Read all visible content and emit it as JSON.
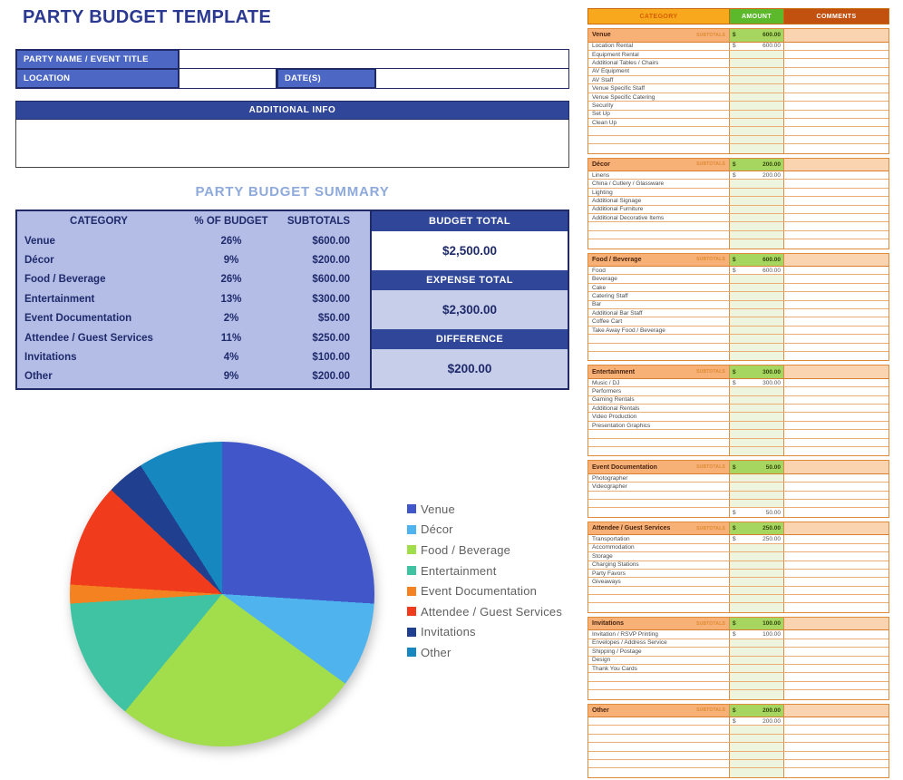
{
  "title": "PARTY BUDGET TEMPLATE",
  "form": {
    "party_name_label": "PARTY NAME / EVENT TITLE",
    "party_name_value": "",
    "location_label": "LOCATION",
    "location_value": "",
    "dates_label": "DATE(S)",
    "dates_value": "",
    "additional_info_label": "ADDITIONAL INFO",
    "additional_info_value": ""
  },
  "summary": {
    "title": "PARTY BUDGET SUMMARY",
    "columns": [
      "CATEGORY",
      "% OF BUDGET",
      "SUBTOTALS"
    ],
    "rows": [
      {
        "category": "Venue",
        "percent": "26%",
        "subtotal": "$600.00"
      },
      {
        "category": "Décor",
        "percent": "9%",
        "subtotal": "$200.00"
      },
      {
        "category": "Food / Beverage",
        "percent": "26%",
        "subtotal": "$600.00"
      },
      {
        "category": "Entertainment",
        "percent": "13%",
        "subtotal": "$300.00"
      },
      {
        "category": "Event Documentation",
        "percent": "2%",
        "subtotal": "$50.00"
      },
      {
        "category": "Attendee / Guest Services",
        "percent": "11%",
        "subtotal": "$250.00"
      },
      {
        "category": "Invitations",
        "percent": "4%",
        "subtotal": "$100.00"
      },
      {
        "category": "Other",
        "percent": "9%",
        "subtotal": "$200.00"
      }
    ],
    "totals": [
      {
        "label": "BUDGET TOTAL",
        "value": "$2,500.00"
      },
      {
        "label": "EXPENSE TOTAL",
        "value": "$2,300.00"
      },
      {
        "label": "DIFFERENCE",
        "value": "$200.00"
      }
    ],
    "accent_color": "#2F4699",
    "body_color": "#B4BDE6",
    "shade_color": "#C7CEEA"
  },
  "chart_data": {
    "type": "pie",
    "title": "",
    "categories": [
      "Venue",
      "Décor",
      "Food / Beverage",
      "Entertainment",
      "Event Documentation",
      "Attendee / Guest Services",
      "Invitations",
      "Other"
    ],
    "values": [
      26,
      9,
      26,
      13,
      2,
      11,
      4,
      9
    ],
    "unit": "%",
    "colors": [
      "#4156C8",
      "#4FB3EE",
      "#A2DD4C",
      "#40C3A2",
      "#F58220",
      "#F03B1D",
      "#20408F",
      "#1787C0"
    ],
    "legend_position": "right",
    "start_angle_deg": 0,
    "direction": "clockwise"
  },
  "sheet": {
    "columns": [
      {
        "label": "CATEGORY",
        "bg": "#F8A81C",
        "text": "#D45F00"
      },
      {
        "label": "AMOUNT",
        "bg": "#5BB92B",
        "text": "#FFFFFF"
      },
      {
        "label": "COMMENTS",
        "bg": "#C2500F",
        "text": "#FFFFFF"
      }
    ],
    "subtotals_tag": "SUBTOTALS",
    "currency": "$",
    "sections": [
      {
        "name": "Venue",
        "subtotal": "600.00",
        "items": [
          {
            "label": "Location Rental",
            "amount": "600.00"
          },
          {
            "label": "Equipment Rental"
          },
          {
            "label": "Additional Tables / Chairs"
          },
          {
            "label": "AV Equipment"
          },
          {
            "label": "AV Staff"
          },
          {
            "label": "Venue Specific Staff"
          },
          {
            "label": "Venue Specific Catering"
          },
          {
            "label": "Security"
          },
          {
            "label": "Set Up"
          },
          {
            "label": "Clean Up"
          },
          {
            "label": ""
          },
          {
            "label": ""
          },
          {
            "label": ""
          }
        ]
      },
      {
        "name": "Décor",
        "subtotal": "200.00",
        "items": [
          {
            "label": "Linens",
            "amount": "200.00"
          },
          {
            "label": "China / Cutlery / Glassware"
          },
          {
            "label": "Lighting"
          },
          {
            "label": "Additional Signage"
          },
          {
            "label": "Additional Furniture"
          },
          {
            "label": "Additional Decorative Items"
          },
          {
            "label": ""
          },
          {
            "label": ""
          },
          {
            "label": ""
          }
        ]
      },
      {
        "name": "Food / Beverage",
        "subtotal": "600.00",
        "items": [
          {
            "label": "Food",
            "amount": "600.00"
          },
          {
            "label": "Beverage"
          },
          {
            "label": "Cake"
          },
          {
            "label": "Catering Staff"
          },
          {
            "label": "Bar"
          },
          {
            "label": "Additional Bar Staff"
          },
          {
            "label": "Coffee Cart"
          },
          {
            "label": "Take Away Food / Beverage"
          },
          {
            "label": ""
          },
          {
            "label": ""
          },
          {
            "label": ""
          }
        ]
      },
      {
        "name": "Entertainment",
        "subtotal": "300.00",
        "items": [
          {
            "label": "Music / DJ",
            "amount": "300.00"
          },
          {
            "label": "Performers"
          },
          {
            "label": "Gaming Rentals"
          },
          {
            "label": "Additional Rentals"
          },
          {
            "label": "Video Production"
          },
          {
            "label": "Presentation Graphics"
          },
          {
            "label": ""
          },
          {
            "label": ""
          },
          {
            "label": ""
          }
        ]
      },
      {
        "name": "Event Documentation",
        "subtotal": "50.00",
        "items": [
          {
            "label": "Photographer"
          },
          {
            "label": "Videographer"
          },
          {
            "label": ""
          },
          {
            "label": ""
          },
          {
            "label": "",
            "amount": "50.00"
          }
        ]
      },
      {
        "name": "Attendee / Guest Services",
        "subtotal": "250.00",
        "items": [
          {
            "label": "Transportation",
            "amount": "250.00"
          },
          {
            "label": "Accommodation"
          },
          {
            "label": "Storage"
          },
          {
            "label": "Charging Stations"
          },
          {
            "label": "Party Favors"
          },
          {
            "label": "Giveaways"
          },
          {
            "label": ""
          },
          {
            "label": ""
          },
          {
            "label": ""
          }
        ]
      },
      {
        "name": "Invitations",
        "subtotal": "100.00",
        "items": [
          {
            "label": "Invitation / RSVP Printing",
            "amount": "100.00"
          },
          {
            "label": "Envelopes / Address Service"
          },
          {
            "label": "Shipping / Postage"
          },
          {
            "label": "Design"
          },
          {
            "label": "Thank You Cards"
          },
          {
            "label": ""
          },
          {
            "label": ""
          },
          {
            "label": ""
          }
        ]
      },
      {
        "name": "Other",
        "subtotal": "200.00",
        "items": [
          {
            "label": "",
            "amount": "200.00"
          },
          {
            "label": ""
          },
          {
            "label": ""
          },
          {
            "label": ""
          },
          {
            "label": ""
          },
          {
            "label": ""
          },
          {
            "label": ""
          }
        ]
      }
    ]
  }
}
